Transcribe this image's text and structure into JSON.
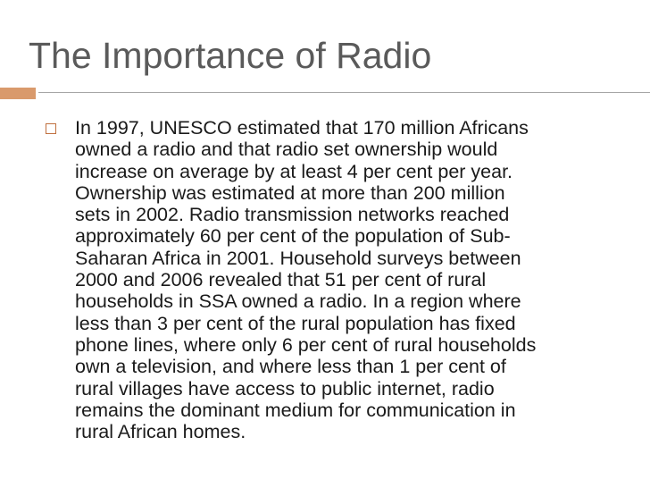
{
  "title": "The Importance of Radio",
  "body": {
    "lines": [
      "In 1997, UNESCO estimated that 170 million Africans",
      "owned a radio and that radio set ownership would",
      "increase on average by at least 4 per cent per year.",
      "Ownership was estimated at more than 200 million",
      "sets in 2002. Radio transmission networks reached",
      "approximately 60 per cent of the population of Sub-",
      "Saharan Africa in 2001. Household surveys between",
      "2000 and 2006 revealed that 51 per cent of rural",
      "households in SSA owned a radio. In a region where",
      "less than 3 per cent of the rural population has fixed",
      "phone lines, where only 6 per cent of rural households",
      "own a television, and where less than 1 per cent of",
      "rural villages have access to public internet, radio",
      "remains the dominant medium for communication in",
      "rural African homes."
    ]
  }
}
